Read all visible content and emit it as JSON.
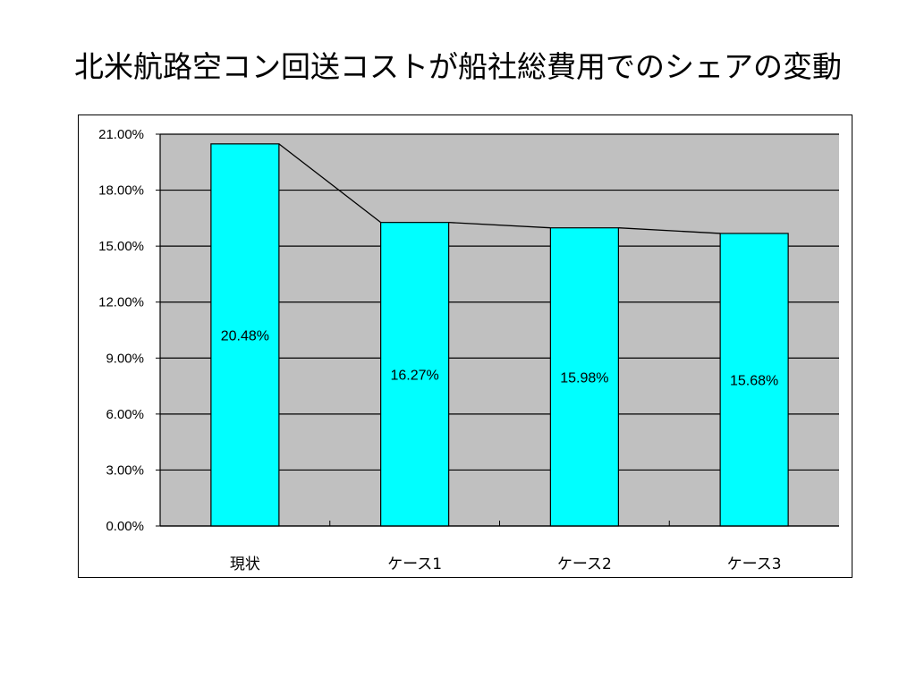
{
  "slide": {
    "title": "北米航路空コン回送コストが船社総費用でのシェアの変動"
  },
  "chart_data": {
    "type": "bar",
    "categories": [
      "現状",
      "ケース1",
      "ケース2",
      "ケース3"
    ],
    "values": [
      20.48,
      16.27,
      15.98,
      15.68
    ],
    "data_labels": [
      "20.48%",
      "16.27%",
      "15.98%",
      "15.68%"
    ],
    "ylim": [
      0,
      21
    ],
    "yticks": [
      0,
      3,
      6,
      9,
      12,
      15,
      18,
      21
    ],
    "ytick_labels": [
      "0.00%",
      "3.00%",
      "6.00%",
      "9.00%",
      "12.00%",
      "15.00%",
      "18.00%",
      "21.00%"
    ],
    "grid": true,
    "legend": "none",
    "trend_line": true,
    "colors": {
      "bar_fill": "#00FFFF",
      "bar_stroke": "#000000",
      "plot_background": "#C0C0C0",
      "gridline": "#000000",
      "trend_line": "#000000"
    }
  }
}
